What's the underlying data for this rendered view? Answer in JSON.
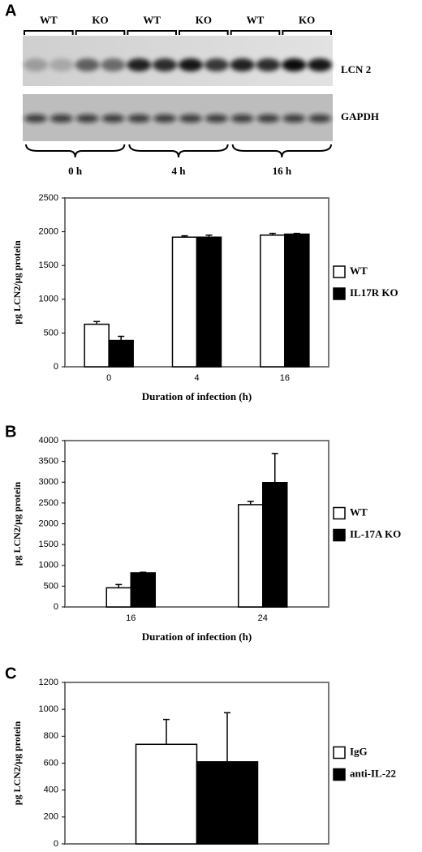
{
  "blot": {
    "panel_label": "A",
    "lanes": [
      "WT",
      "KO",
      "WT",
      "KO",
      "WT",
      "KO"
    ],
    "bands": [
      "LCN 2",
      "GAPDH"
    ],
    "timepoints": [
      "0 h",
      "4 h",
      "16 h"
    ]
  },
  "chart_data": [
    {
      "type": "bar",
      "ylabel": "pg LCN2/µg protein",
      "xlabel": "Duration of infection (h)",
      "categories": [
        "0",
        "4",
        "16"
      ],
      "series": [
        {
          "name": "WT",
          "color": "#ffffff",
          "values": [
            630,
            1920,
            1950
          ],
          "errors": [
            40,
            20,
            25
          ]
        },
        {
          "name": "IL17R KO",
          "color": "#000000",
          "values": [
            390,
            1920,
            1965
          ],
          "errors": [
            60,
            30,
            10
          ]
        }
      ],
      "ylim": [
        0,
        2500
      ],
      "yticks": [
        0,
        500,
        1000,
        1500,
        2000,
        2500
      ],
      "legend": "right"
    },
    {
      "type": "bar",
      "panel_label": "B",
      "ylabel": "pg LCN2/µg protein",
      "xlabel": "Duration of infection (h)",
      "categories": [
        "16",
        "24"
      ],
      "series": [
        {
          "name": "WT",
          "color": "#ffffff",
          "values": [
            460,
            2460
          ],
          "errors": [
            80,
            80
          ]
        },
        {
          "name": "IL-17A KO",
          "color": "#000000",
          "values": [
            820,
            2990
          ],
          "errors": [
            15,
            700
          ]
        }
      ],
      "ylim": [
        0,
        4000
      ],
      "yticks": [
        0,
        500,
        1000,
        1500,
        2000,
        2500,
        3000,
        3500,
        4000
      ],
      "legend": "right"
    },
    {
      "type": "bar",
      "panel_label": "C",
      "ylabel": "pg LCN2/µg protein",
      "categories": [
        null
      ],
      "series": [
        {
          "name": "IgG",
          "color": "#ffffff",
          "values": [
            740
          ],
          "errors": [
            185
          ]
        },
        {
          "name": "anti-IL-22",
          "color": "#000000",
          "values": [
            610
          ],
          "errors": [
            365
          ]
        }
      ],
      "ylim": [
        0,
        1200
      ],
      "yticks": [
        0,
        200,
        400,
        600,
        800,
        1000,
        1200
      ],
      "legend": "right"
    }
  ]
}
